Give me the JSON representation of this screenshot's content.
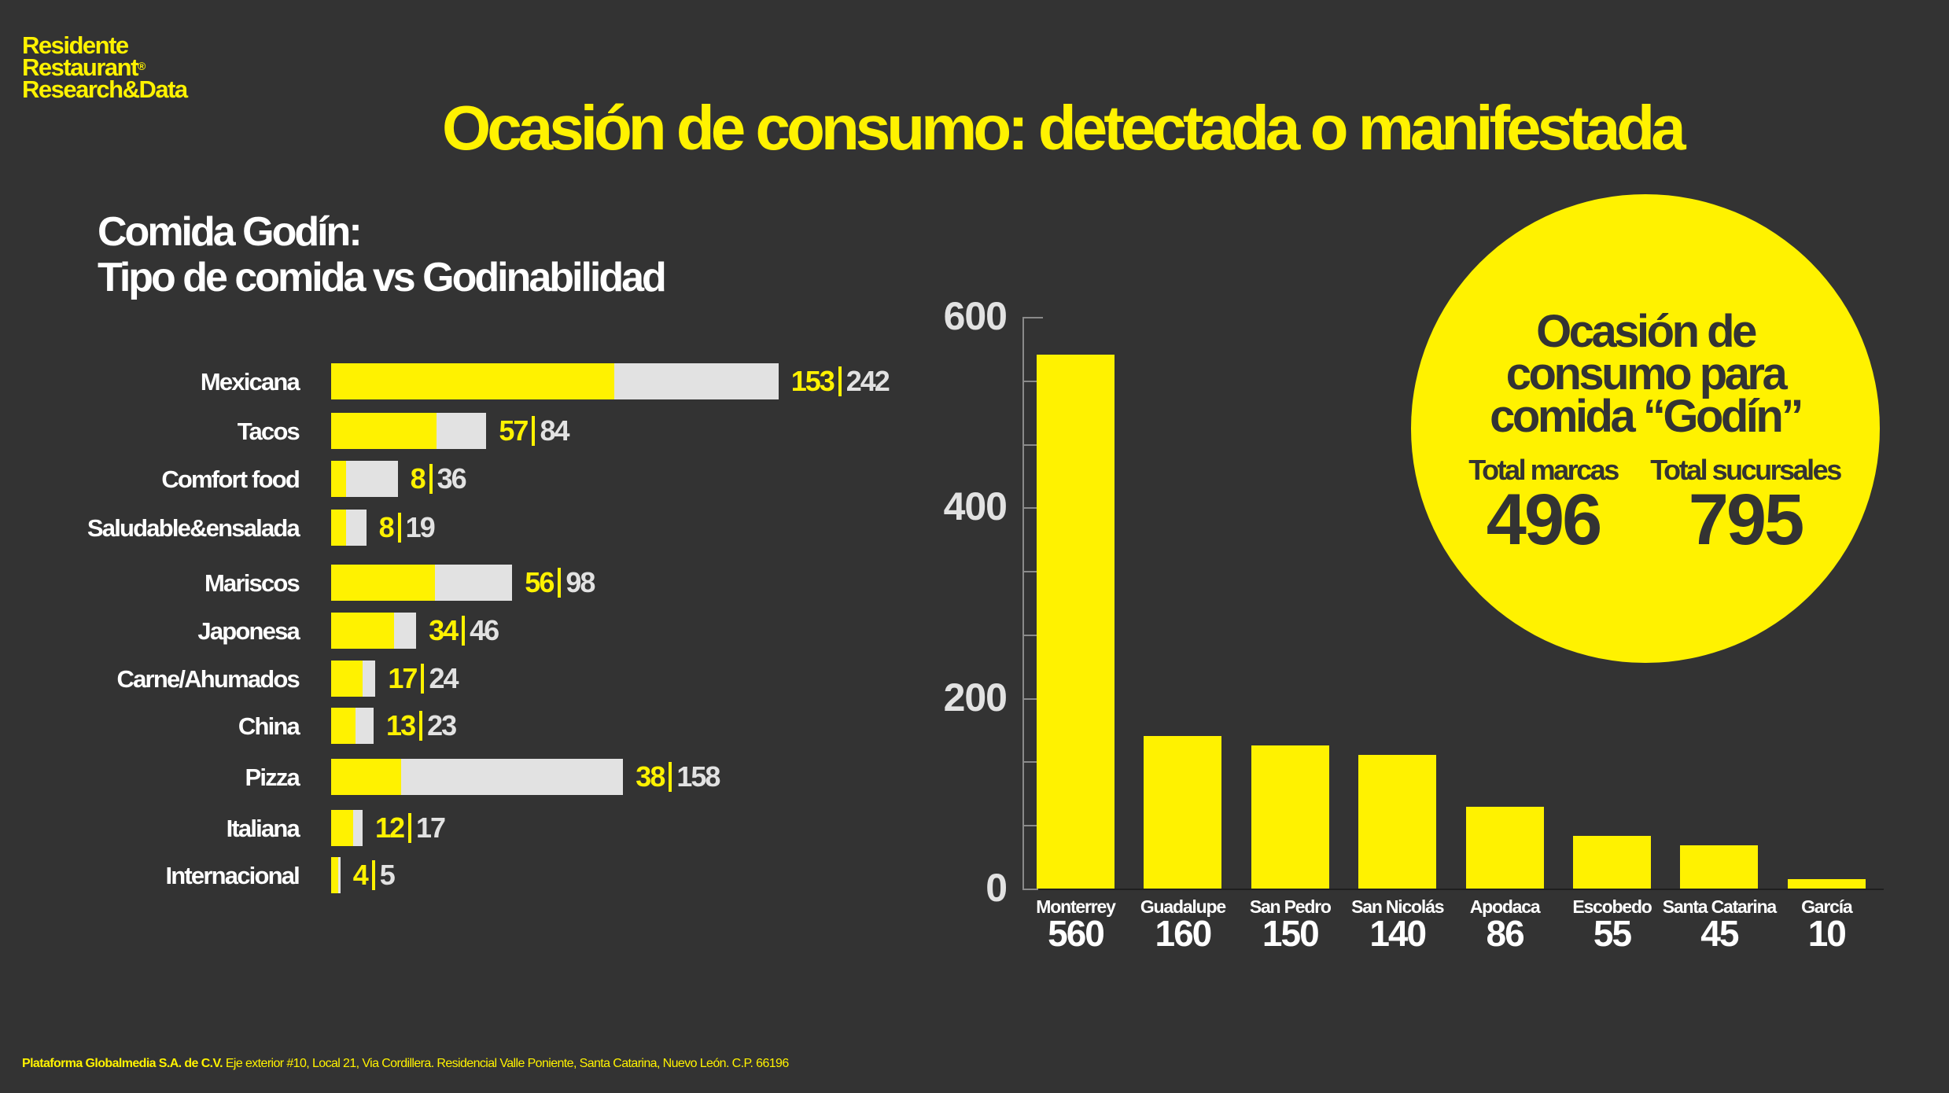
{
  "brand": {
    "line1": "Residente",
    "line2": "Restaurant",
    "registered_mark": "®",
    "line3": "Research&Data"
  },
  "title": "Ocasión de consumo: detectada o manifestada",
  "subtitle": {
    "line1": "Comida Godín:",
    "line2": "Tipo de comida vs Godinabilidad"
  },
  "colors": {
    "background": "#333333",
    "accent": "#FFF200",
    "total_bar": "#E2E2E2",
    "text": "#FFFFFF"
  },
  "circle": {
    "title_line1": "Ocasión de",
    "title_line2": "consumo para",
    "title_line3": "comida “Godín”",
    "stats": [
      {
        "label": "Total marcas",
        "value": "496"
      },
      {
        "label": "Total sucursales",
        "value": "795"
      }
    ]
  },
  "footer": {
    "company": "Plataforma Globalmedia S.A. de C.V.",
    "address": "Eje exterior #10, Local 21, Via Cordillera. Residencial Valle Poniente, Santa Catarina, Nuevo León. C.P. 66196"
  },
  "chart_data": [
    {
      "type": "bar",
      "orientation": "horizontal",
      "title": "Comida Godín: Tipo de comida vs Godinabilidad",
      "categories": [
        "Mexicana",
        "Tacos",
        "Comfort food",
        "Saludable&ensalada",
        "Mariscos",
        "Japonesa",
        "Carne/Ahumados",
        "China",
        "Pizza",
        "Italiana",
        "Internacional"
      ],
      "series": [
        {
          "name": "Godín",
          "color": "#FFF200",
          "values": [
            153,
            57,
            8,
            8,
            56,
            34,
            17,
            13,
            38,
            12,
            4
          ]
        },
        {
          "name": "Total",
          "color": "#E2E2E2",
          "values": [
            242,
            84,
            36,
            19,
            98,
            46,
            24,
            23,
            158,
            17,
            5
          ]
        }
      ],
      "data_label_separator": "|",
      "grid": false
    },
    {
      "type": "bar",
      "orientation": "vertical",
      "title": "",
      "categories": [
        "Monterrey",
        "Guadalupe",
        "San Pedro",
        "San Nicolás",
        "Apodaca",
        "Escobedo",
        "Santa Catarina",
        "García"
      ],
      "values": [
        560,
        160,
        150,
        140,
        86,
        55,
        45,
        10
      ],
      "value_labels": [
        "560",
        "160",
        "150",
        "140",
        "86",
        "55",
        "45",
        "10"
      ],
      "ylim": [
        0,
        600
      ],
      "yticks": [
        0,
        200,
        400,
        600
      ],
      "minor_tick_count": 9,
      "xlabel": "",
      "ylabel": "",
      "grid": false,
      "color": "#FFF200"
    }
  ]
}
